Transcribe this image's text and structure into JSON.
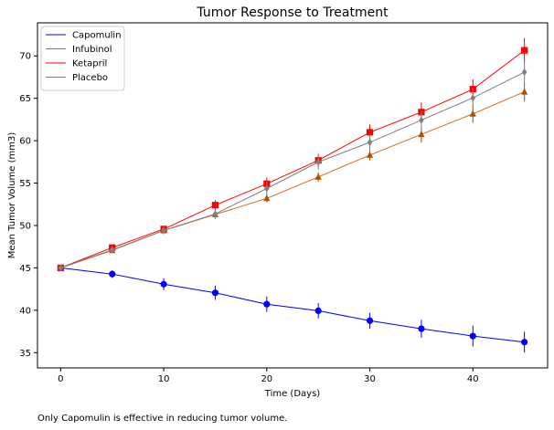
{
  "caption": "Only Capomulin is effective in reducing tumor volume.",
  "chart_data": {
    "type": "line",
    "title": "Tumor Response to Treatment",
    "xlabel": "Time (Days)",
    "ylabel": "Mean Tumor Volume (mm3)",
    "xlim": [
      -2.25,
      47.25
    ],
    "ylim": [
      33.2,
      73.9
    ],
    "xticks": [
      0,
      10,
      20,
      30,
      40
    ],
    "yticks": [
      35,
      40,
      45,
      50,
      55,
      60,
      65,
      70
    ],
    "grid": false,
    "legend_position": "top-left",
    "x": [
      0,
      5,
      10,
      15,
      20,
      25,
      30,
      35,
      40,
      45
    ],
    "series": [
      {
        "name": "Capomulin",
        "color": "#0000ff",
        "marker": "circle",
        "values": [
          45.0,
          44.27,
          43.08,
          42.06,
          40.72,
          39.94,
          38.77,
          37.82,
          36.96,
          36.24
        ],
        "errors": [
          0.0,
          0.45,
          0.7,
          0.84,
          0.91,
          0.89,
          0.93,
          1.05,
          1.22,
          1.22
        ]
      },
      {
        "name": "Infubinol",
        "color": "#b24f00",
        "line_color": "#d2691e",
        "marker": "triangle",
        "values": [
          45.0,
          47.06,
          49.4,
          51.3,
          53.2,
          55.72,
          58.3,
          60.74,
          63.16,
          65.76
        ],
        "errors": [
          0.0,
          0.24,
          0.43,
          0.46,
          0.49,
          0.55,
          0.63,
          0.98,
          1.06,
          1.14
        ]
      },
      {
        "name": "Ketapril",
        "color": "#ff0000",
        "marker": "square",
        "values": [
          45.0,
          47.39,
          49.58,
          52.4,
          54.92,
          57.68,
          60.99,
          63.37,
          66.07,
          70.66
        ],
        "errors": [
          0.0,
          0.26,
          0.36,
          0.58,
          0.73,
          0.76,
          0.93,
          1.13,
          1.16,
          1.45
        ]
      },
      {
        "name": "Placebo",
        "color": "#808080",
        "marker": "diamond",
        "values": [
          45.0,
          47.13,
          49.42,
          51.36,
          54.36,
          57.48,
          59.81,
          62.42,
          65.05,
          68.08
        ],
        "errors": [
          0.0,
          0.22,
          0.4,
          0.61,
          0.84,
          0.88,
          0.93,
          1.06,
          1.14,
          1.35
        ]
      }
    ]
  }
}
